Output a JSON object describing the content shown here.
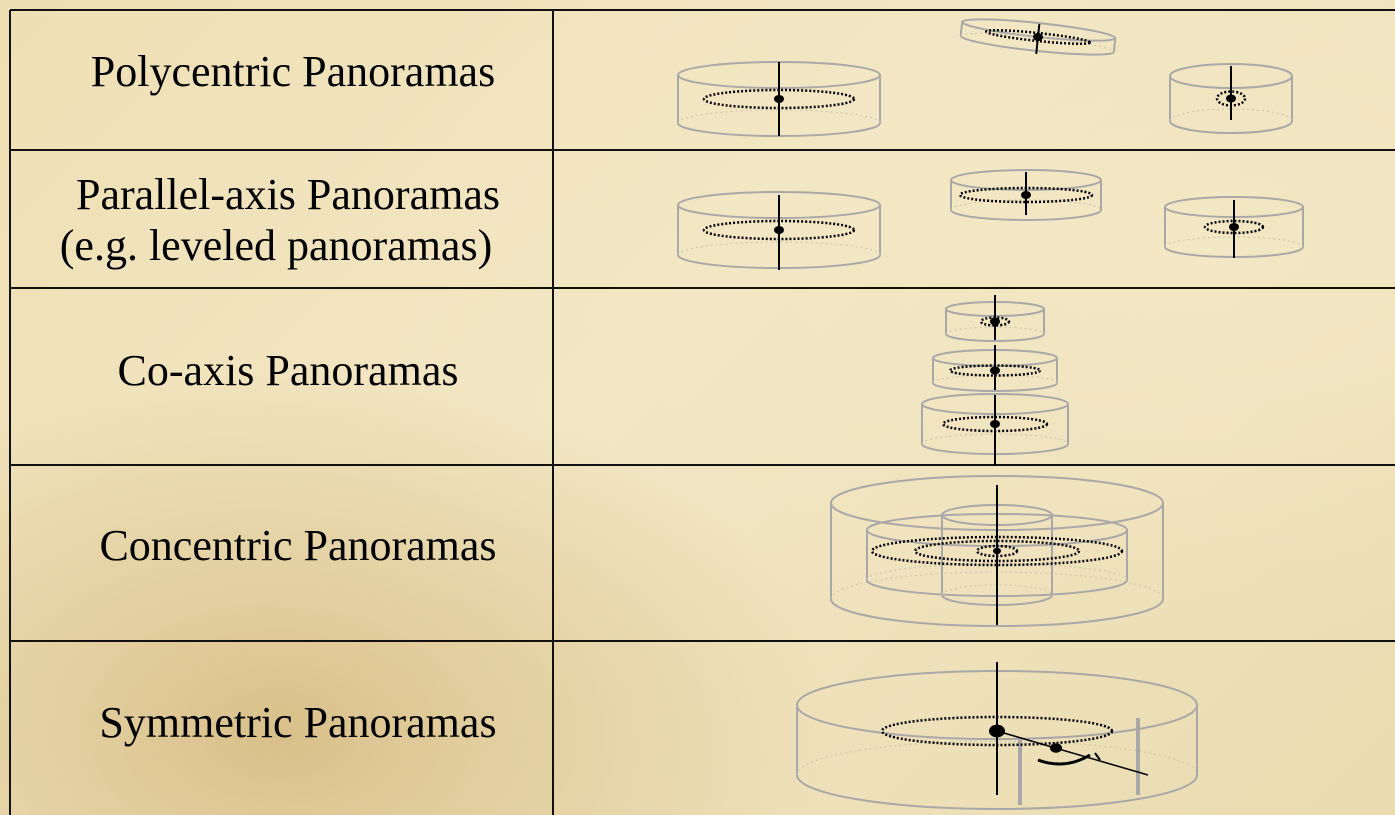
{
  "table": {
    "rows": [
      [
        "Polycentric Panoramas"
      ],
      [
        "Parallel-axis Panoramas",
        "(e.g. leveled panoramas)"
      ],
      [
        "Co-axis Panoramas"
      ],
      [
        "Concentric Panoramas"
      ],
      [
        "Symmetric Panoramas"
      ]
    ]
  }
}
